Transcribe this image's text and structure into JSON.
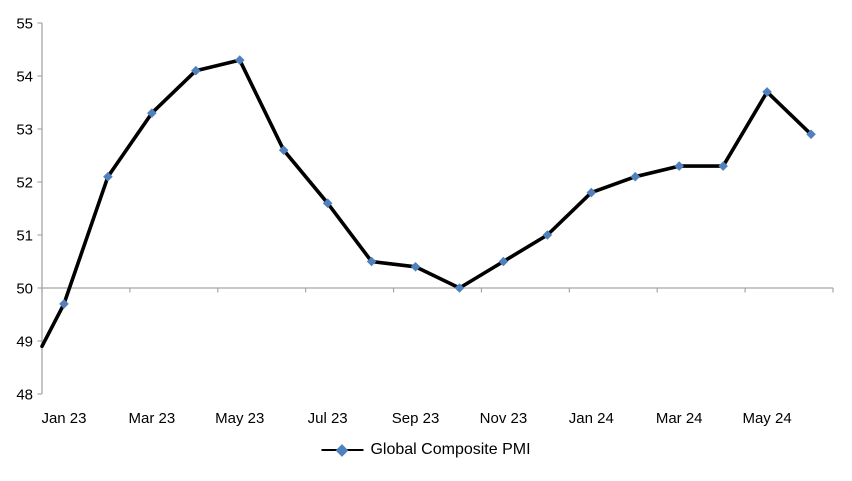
{
  "chart_data": {
    "type": "line",
    "title": "",
    "x": [
      "Jan 23",
      "Feb 23",
      "Mar 23",
      "Apr 23",
      "May 23",
      "Jun 23",
      "Jul 23",
      "Aug 23",
      "Sep 23",
      "Oct 23",
      "Nov 23",
      "Dec 23",
      "Jan 24",
      "Feb 24",
      "Mar 24",
      "Apr 24",
      "May 24",
      "Jun 24"
    ],
    "series": [
      {
        "name": "Global Composite PMI",
        "values": [
          49.7,
          52.1,
          53.3,
          54.1,
          54.3,
          52.6,
          51.6,
          50.5,
          50.4,
          50.0,
          50.5,
          51.0,
          51.8,
          52.1,
          52.3,
          52.3,
          53.7,
          52.9
        ],
        "line_color": "#000000",
        "marker": "diamond",
        "marker_color": "#4F81BD"
      }
    ],
    "edge_entry_value_at_left_axis": 48.9,
    "ylim": [
      48,
      55
    ],
    "y_ticks": [
      55,
      54,
      53,
      52,
      51,
      50,
      49,
      48
    ],
    "x_tick_labels": [
      "Jan 23",
      "Mar 23",
      "May 23",
      "Jul 23",
      "Sep 23",
      "Nov 23",
      "Jan 24",
      "Mar 24",
      "May 24"
    ],
    "x_tick_label_every_n_categories": 2,
    "x_axis_crosses_at": 50,
    "grid": "off",
    "legend_position": "bottom"
  },
  "legend": {
    "label": "Global Composite PMI"
  },
  "colors": {
    "axis_line": "#A6A6A6",
    "tick_mark": "#A6A6A6",
    "label_text": "#000000",
    "series_line": "#000000",
    "series_marker": "#4F81BD",
    "background": "#FFFFFF"
  }
}
